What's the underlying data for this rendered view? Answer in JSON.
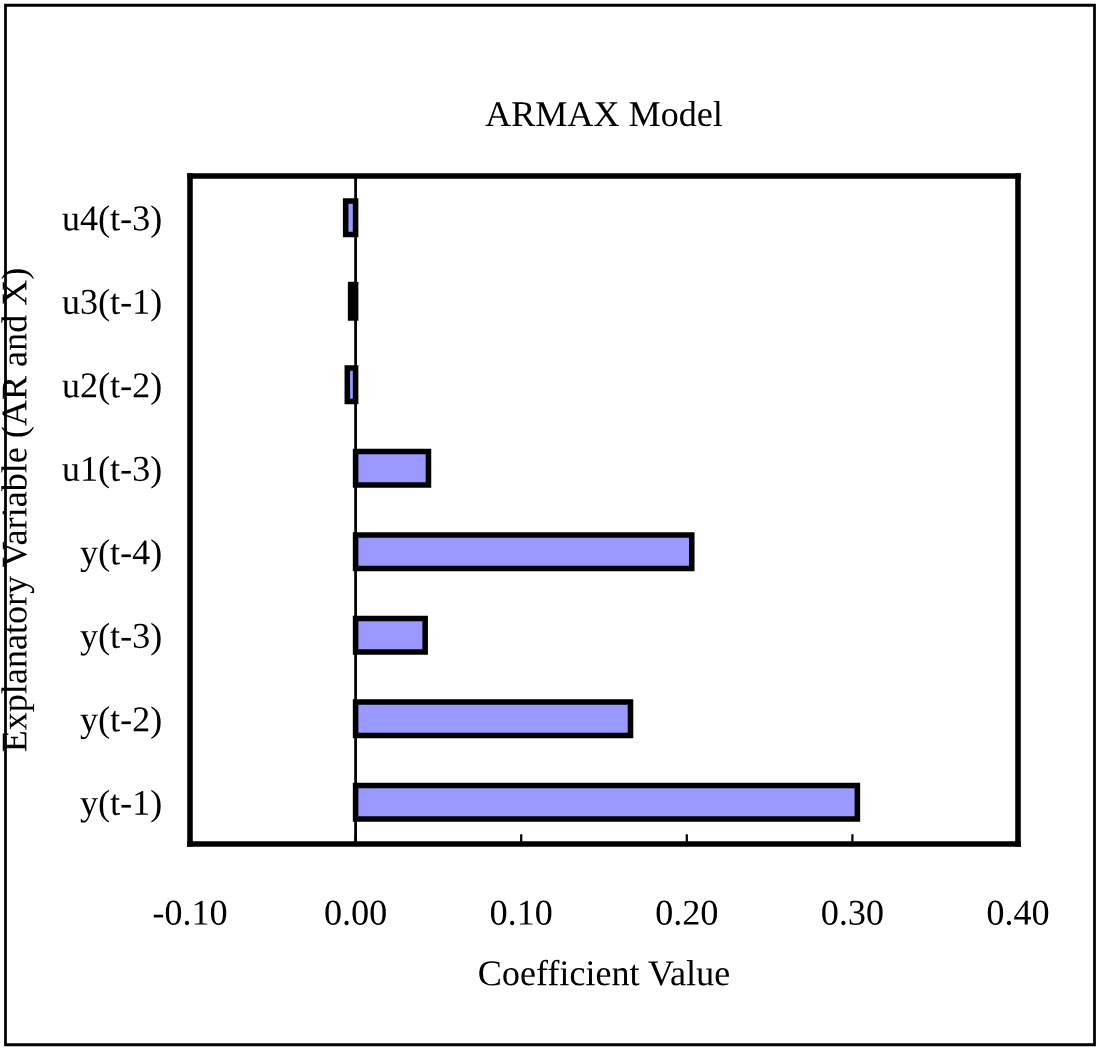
{
  "chart_data": {
    "type": "bar",
    "orientation": "horizontal",
    "title": "ARMAX Model",
    "xlabel": "Coefficient Value",
    "ylabel": "Explanatory Variable (AR and X)",
    "categories": [
      "u4(t-3)",
      "u3(t-1)",
      "u2(t-2)",
      "u1(t-3)",
      "y(t-4)",
      "y(t-3)",
      "y(t-2)",
      "y(t-1)"
    ],
    "values": [
      -0.006,
      -0.003,
      -0.005,
      0.044,
      0.203,
      0.042,
      0.166,
      0.303
    ],
    "color": "#9999ff",
    "xlim": [
      -0.1,
      0.4
    ],
    "xticks": [
      {
        "value": -0.1,
        "label": "-0.10"
      },
      {
        "value": 0,
        "label": "0.00"
      },
      {
        "value": 0.1,
        "label": "0.10"
      },
      {
        "value": 0.2,
        "label": "0.20"
      },
      {
        "value": 0.3,
        "label": "0.30"
      },
      {
        "value": 0.4,
        "label": "0.40"
      }
    ],
    "ref_lines": [
      {
        "axis": "x",
        "value": 0,
        "color": "#000000"
      }
    ],
    "grid": false,
    "legend": false
  }
}
